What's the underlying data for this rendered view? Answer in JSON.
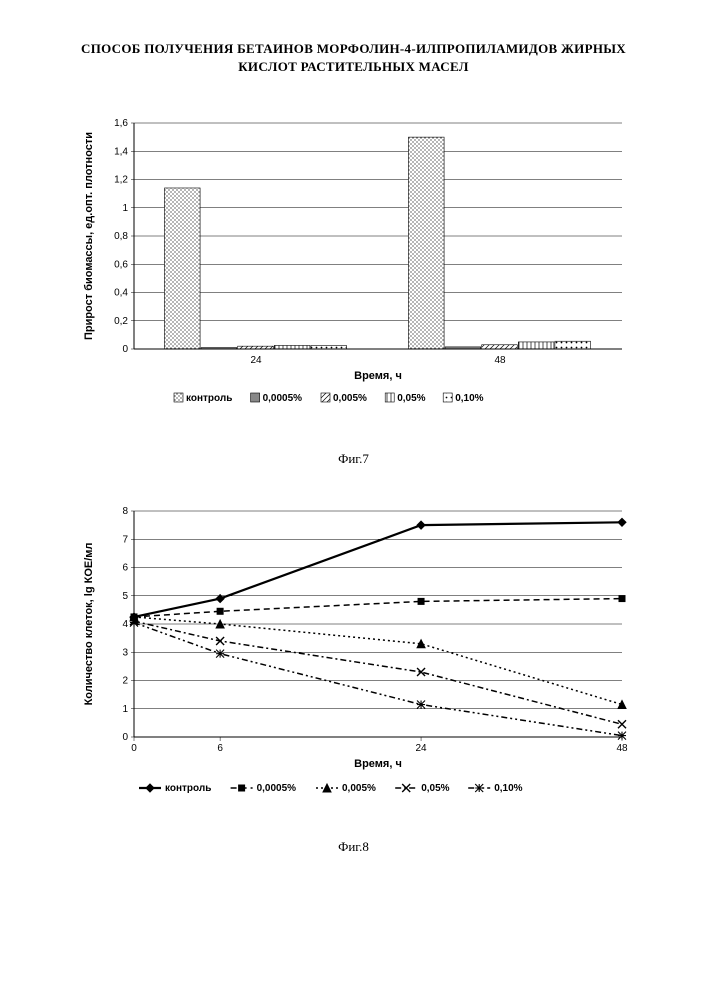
{
  "page_title": "СПОСОБ ПОЛУЧЕНИЯ БЕТАИНОВ МОРФОЛИН-4-ИЛПРОПИЛАМИДОВ ЖИРНЫХ КИСЛОТ РАСТИТЕЛЬНЫХ МАСЕЛ",
  "fig7": {
    "type": "bar",
    "caption": "Фиг.7",
    "x_label": "Время, ч",
    "y_label": "Прирост биомассы, ед.опт. плотности",
    "categories": [
      "24",
      "48"
    ],
    "ylim": [
      0,
      1.6
    ],
    "ytick_step": 0.2,
    "yticks": [
      "0",
      "0,2",
      "0,4",
      "0,6",
      "0,8",
      "1",
      "1,2",
      "1,4",
      "1,6"
    ],
    "series": [
      {
        "label": "контроль",
        "values": [
          1.14,
          1.5
        ],
        "fill": "dots",
        "color": "#000000"
      },
      {
        "label": "0,0005%",
        "values": [
          0.01,
          0.015
        ],
        "fill": "solid",
        "color": "#888888"
      },
      {
        "label": "0,005%",
        "values": [
          0.02,
          0.03
        ],
        "fill": "diag",
        "color": "#000000"
      },
      {
        "label": "0,05%",
        "values": [
          0.025,
          0.05
        ],
        "fill": "vert",
        "color": "#000000"
      },
      {
        "label": "0,10%",
        "values": [
          0.025,
          0.055
        ],
        "fill": "dots2",
        "color": "#000000"
      }
    ],
    "legend_prefix_glyphs": [
      "□",
      "■",
      "▧",
      "▥",
      "▨"
    ],
    "bg": "#ffffff",
    "grid_color": "#000000",
    "axis_color": "#000000",
    "bar_group_gap": 0.5,
    "bar_width": 0.15,
    "label_fontsize": 11,
    "tick_fontsize": 10
  },
  "fig8": {
    "type": "line",
    "caption": "Фиг.8",
    "x_label": "Время, ч",
    "y_label": "Количество клеток, lg КОЕ/мл",
    "x_values": [
      0,
      6,
      24,
      48
    ],
    "x_positions": [
      0,
      6,
      20,
      34
    ],
    "xlim": [
      0,
      34
    ],
    "ylim": [
      0,
      8
    ],
    "ytick_step": 1,
    "series": [
      {
        "label": "контроль",
        "values": [
          4.25,
          4.9,
          7.5,
          7.6
        ],
        "color": "#000000",
        "dash": "",
        "marker": "diamond",
        "fill_marker": true,
        "width": 2.2
      },
      {
        "label": "0,0005%",
        "values": [
          4.25,
          4.45,
          4.8,
          4.9
        ],
        "color": "#000000",
        "dash": "6,4",
        "marker": "square",
        "fill_marker": true,
        "width": 1.5
      },
      {
        "label": "0,005%",
        "values": [
          4.25,
          4.0,
          3.3,
          1.15
        ],
        "color": "#000000",
        "dash": "2,3",
        "marker": "triangle",
        "fill_marker": true,
        "width": 1.5
      },
      {
        "label": "0,05%",
        "values": [
          4.1,
          3.4,
          2.3,
          0.45
        ],
        "color": "#000000",
        "dash": "6,3,2,3",
        "marker": "x",
        "fill_marker": false,
        "width": 1.5
      },
      {
        "label": "0,10%",
        "values": [
          4.05,
          2.95,
          1.15,
          0.05
        ],
        "color": "#000000",
        "dash": "6,3,2,3,2,3",
        "marker": "asterisk",
        "fill_marker": false,
        "width": 1.5
      }
    ],
    "bg": "#ffffff",
    "grid_color": "#000000",
    "axis_color": "#000000",
    "label_fontsize": 11,
    "tick_fontsize": 10
  }
}
